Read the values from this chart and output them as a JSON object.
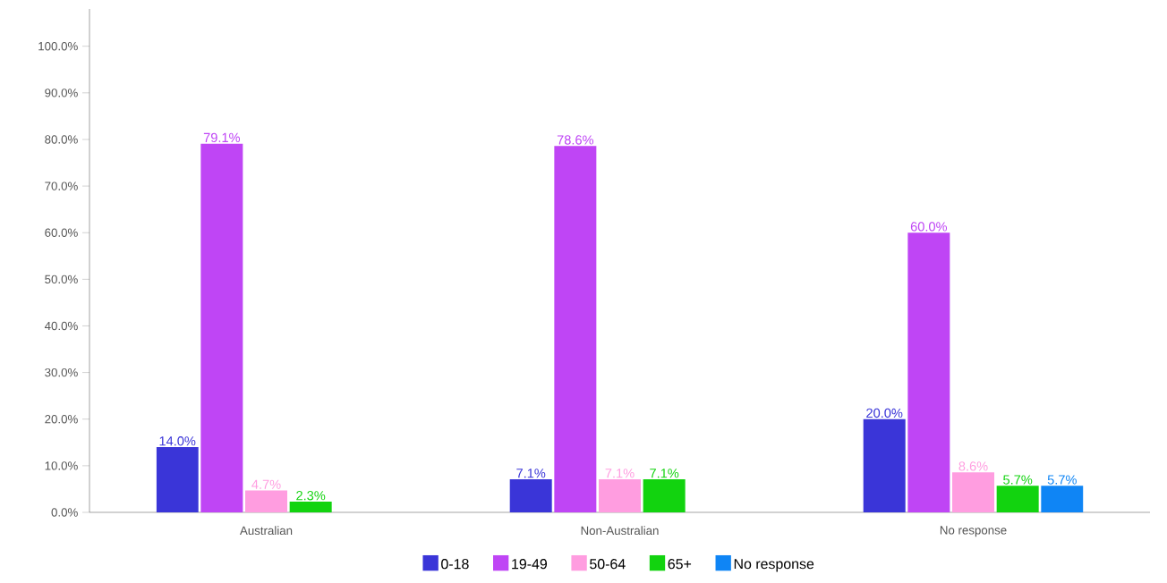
{
  "chart_data": {
    "type": "bar",
    "categories": [
      "Australian",
      "Non-Australian",
      "No response"
    ],
    "ylim": [
      0,
      108
    ],
    "yticks": [
      {
        "value": 0,
        "label": "0.0%"
      },
      {
        "value": 10,
        "label": "10.0%"
      },
      {
        "value": 20,
        "label": "20.0%"
      },
      {
        "value": 30,
        "label": "30.0%"
      },
      {
        "value": 40,
        "label": "40.0%"
      },
      {
        "value": 50,
        "label": "50.0%"
      },
      {
        "value": 60,
        "label": "60.0%"
      },
      {
        "value": 70,
        "label": "70.0%"
      },
      {
        "value": 80,
        "label": "80.0%"
      },
      {
        "value": 90,
        "label": "90.0%"
      },
      {
        "value": 100,
        "label": "100.0%"
      }
    ],
    "legend": "bottom",
    "series": [
      {
        "name": "0-18",
        "color": "#3a35d8",
        "values": [
          14.0,
          7.1,
          20.0
        ],
        "value_labels": [
          "14.0%",
          "7.1%",
          "20.0%"
        ]
      },
      {
        "name": "19-49",
        "color": "#bf45f5",
        "values": [
          79.1,
          78.6,
          60.0
        ],
        "value_labels": [
          "79.1%",
          "78.6%",
          "60.0%"
        ]
      },
      {
        "name": "50-64",
        "color": "#ff9de0",
        "values": [
          4.7,
          7.1,
          8.6
        ],
        "value_labels": [
          "4.7%",
          "7.1%",
          "8.6%"
        ]
      },
      {
        "name": "65+",
        "color": "#12d30f",
        "values": [
          2.3,
          7.1,
          5.7
        ],
        "value_labels": [
          "2.3%",
          "7.1%",
          "5.7%"
        ]
      },
      {
        "name": "No response",
        "color": "#0f85f5",
        "values": [
          null,
          null,
          5.7
        ],
        "value_labels": [
          null,
          null,
          "5.7%"
        ]
      }
    ]
  }
}
